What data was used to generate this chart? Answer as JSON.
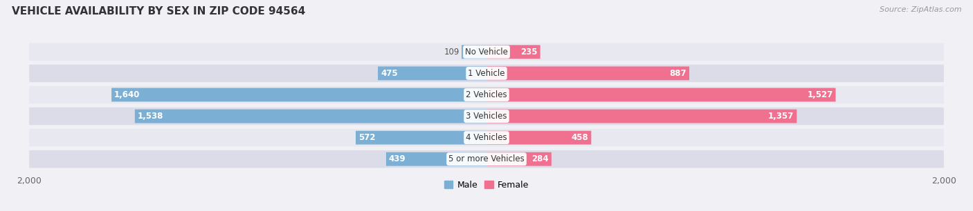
{
  "title": "VEHICLE AVAILABILITY BY SEX IN ZIP CODE 94564",
  "source": "Source: ZipAtlas.com",
  "categories": [
    "No Vehicle",
    "1 Vehicle",
    "2 Vehicles",
    "3 Vehicles",
    "4 Vehicles",
    "5 or more Vehicles"
  ],
  "male_values": [
    109,
    475,
    1640,
    1538,
    572,
    439
  ],
  "female_values": [
    235,
    887,
    1527,
    1357,
    458,
    284
  ],
  "male_color": "#7bafd4",
  "female_color": "#f07090",
  "male_label_color": "#f4aec0",
  "female_label_color": "#f4aec0",
  "male_label": "Male",
  "female_label": "Female",
  "axis_max": 2000,
  "title_fontsize": 11,
  "source_fontsize": 8,
  "label_fontsize": 9,
  "category_fontsize": 8.5,
  "value_fontsize": 8.5,
  "background_color": "#f0f0f5",
  "row_colors": [
    "#e8e8f0",
    "#dcdce8"
  ]
}
